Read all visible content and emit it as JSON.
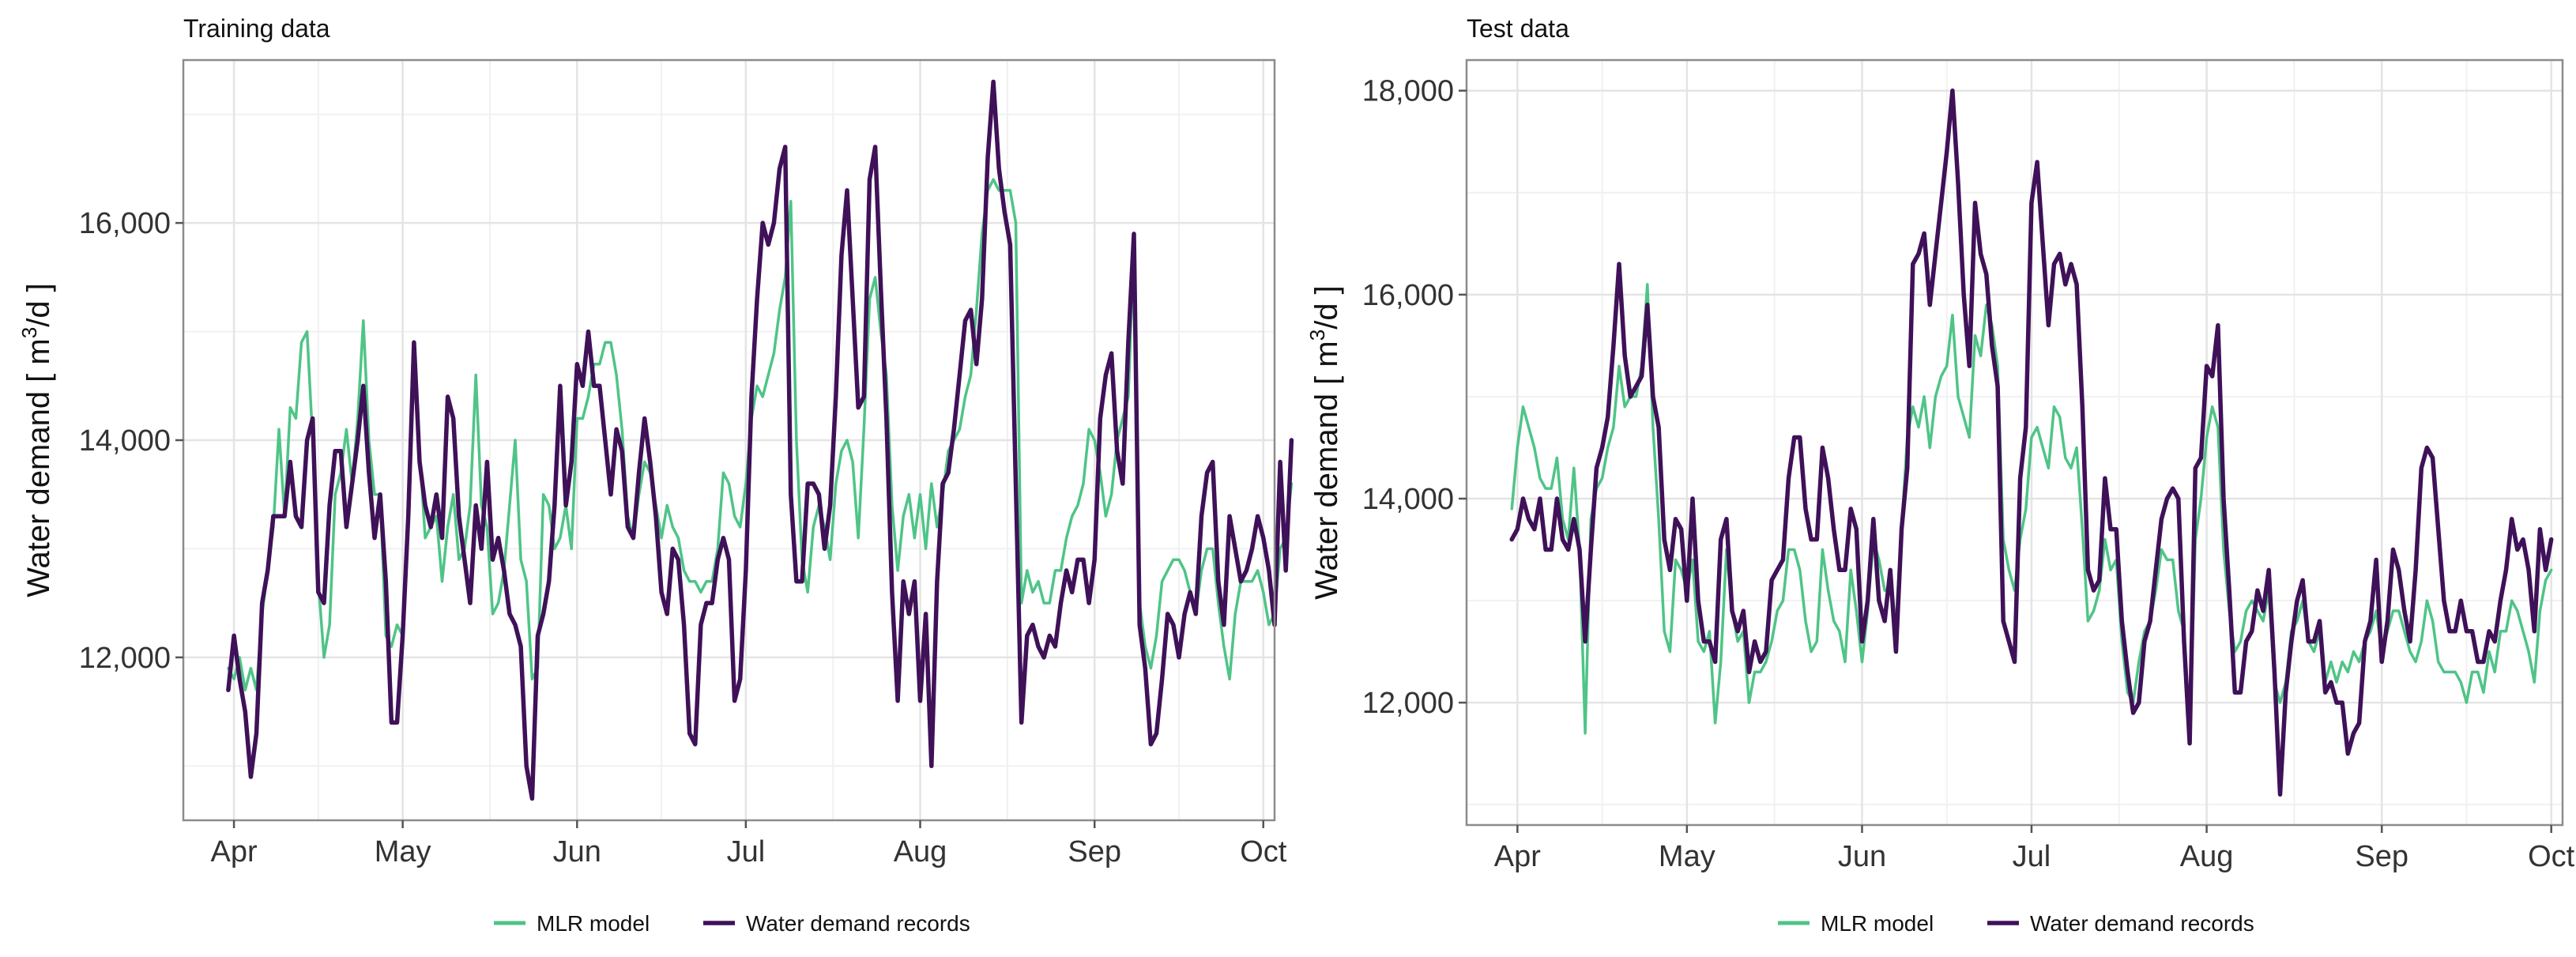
{
  "colors": {
    "mlr": "#4fc487",
    "records": "#3f1158",
    "grid_major": "#e4e4e4",
    "grid_minor": "#f1f1f1",
    "border": "#8c8c8c"
  },
  "chart_data": [
    {
      "type": "line",
      "title": "Training data",
      "xlabel": "",
      "ylabel": "Water demand [ m³/d ]",
      "ylabel_parts": {
        "prefix": "Water demand [ m",
        "sup": "3",
        "suffix": "/d ]"
      },
      "x_tick_labels": [
        "Apr",
        "May",
        "Jun",
        "Jul",
        "Aug",
        "Sep",
        "Oct"
      ],
      "x_tick_days": [
        1,
        31,
        62,
        92,
        123,
        154,
        184
      ],
      "xlim_days": [
        -8,
        186
      ],
      "ylim": [
        10500,
        17500
      ],
      "y_ticks": [
        12000,
        14000,
        16000
      ],
      "y_tick_labels": [
        "12,000",
        "14,000",
        "16,000"
      ],
      "y_minor": [
        11000,
        13000,
        15000,
        17000
      ],
      "legend": {
        "position": "bottom",
        "items": [
          "MLR model",
          "Water demand records"
        ]
      },
      "series": [
        {
          "name": "Water demand records",
          "x_start_day": 0,
          "values": [
            11700,
            12200,
            11800,
            11500,
            10900,
            11300,
            12500,
            12800,
            13300,
            13300,
            13300,
            13800,
            13300,
            13200,
            14000,
            14200,
            12600,
            12500,
            13400,
            13900,
            13900,
            13200,
            13600,
            14000,
            14500,
            13700,
            13100,
            13500,
            12700,
            11400,
            11400,
            12200,
            13300,
            14900,
            13800,
            13400,
            13200,
            13500,
            13100,
            14400,
            14200,
            13300,
            12900,
            12500,
            13400,
            13000,
            13800,
            12900,
            13100,
            12800,
            12400,
            12300,
            12100,
            11000,
            10700,
            12200,
            12400,
            12700,
            13400,
            14500,
            13400,
            13800,
            14700,
            14500,
            15000,
            14500,
            14500,
            14000,
            13500,
            14100,
            13900,
            13200,
            13100,
            13700,
            14200,
            13800,
            13300,
            12600,
            12400,
            13000,
            12900,
            12300,
            11300,
            11200,
            12300,
            12500,
            12500,
            12900,
            13100,
            12900,
            11600,
            11800,
            12800,
            14400,
            15300,
            16000,
            15800,
            16000,
            16500,
            16700,
            13500,
            12700,
            12700,
            13600,
            13600,
            13500,
            13000,
            13400,
            14400,
            15700,
            16300,
            15300,
            14300,
            14400,
            16400,
            16700,
            15400,
            14200,
            12600,
            11600,
            12700,
            12400,
            12700,
            11600,
            12400,
            11000,
            12700,
            13600,
            13700,
            14100,
            14600,
            15100,
            15200,
            14700,
            15300,
            16600,
            17300,
            16500,
            16100,
            15800,
            13600,
            11400,
            12200,
            12300,
            12100,
            12000,
            12200,
            12100,
            12500,
            12800,
            12600,
            12900,
            12900,
            12500,
            12900,
            14200,
            14600,
            14800,
            13900,
            13600,
            14900,
            15900,
            12300,
            11900,
            11200,
            11300,
            11800,
            12400,
            12300,
            12000,
            12400,
            12600,
            12400,
            13300,
            13700,
            13800,
            12700,
            12300,
            13300,
            13000,
            12700,
            12800,
            13000,
            13300,
            13100,
            12800,
            12300,
            13800,
            12800,
            14000
          ]
        },
        {
          "name": "MLR model",
          "x_start_day": 0,
          "values": [
            11900,
            11800,
            12000,
            11700,
            11900,
            11700,
            12400,
            12800,
            13200,
            14100,
            13300,
            14300,
            14200,
            14900,
            15000,
            14000,
            12700,
            12000,
            12300,
            13500,
            13700,
            14100,
            13600,
            14200,
            15100,
            14000,
            13500,
            13500,
            12200,
            12100,
            12300,
            12200,
            13400,
            14600,
            13900,
            13100,
            13200,
            13300,
            12700,
            13200,
            13500,
            12900,
            13000,
            13400,
            14600,
            13400,
            13200,
            12400,
            12500,
            12800,
            13400,
            14000,
            12900,
            12700,
            11800,
            11900,
            13500,
            13400,
            13000,
            13100,
            13400,
            13000,
            14200,
            14200,
            14400,
            14700,
            14700,
            14900,
            14900,
            14600,
            14100,
            13300,
            13100,
            13500,
            13800,
            13700,
            13400,
            13100,
            13400,
            13200,
            13100,
            12800,
            12700,
            12700,
            12600,
            12700,
            12700,
            13000,
            13700,
            13600,
            13300,
            13200,
            13600,
            14200,
            14500,
            14400,
            14600,
            14800,
            15200,
            15500,
            16200,
            14000,
            12900,
            12600,
            13200,
            13400,
            13200,
            12900,
            13600,
            13900,
            14000,
            13800,
            13100,
            14100,
            15300,
            15500,
            15000,
            14600,
            13400,
            12800,
            13300,
            13500,
            13100,
            13500,
            13000,
            13600,
            13200,
            13500,
            13900,
            14000,
            14100,
            14400,
            14600,
            15200,
            15900,
            16300,
            16400,
            16300,
            16300,
            16300,
            16000,
            12500,
            12800,
            12600,
            12700,
            12500,
            12500,
            12800,
            12800,
            13100,
            13300,
            13400,
            13600,
            14100,
            14000,
            13700,
            13300,
            13500,
            14000,
            14200,
            14400,
            15800,
            12500,
            12100,
            11900,
            12200,
            12700,
            12800,
            12900,
            12900,
            12800,
            12600,
            12400,
            12800,
            13000,
            13000,
            12500,
            12100,
            11800,
            12400,
            12700,
            12700,
            12700,
            12800,
            12600,
            12300,
            12400,
            13000,
            13100,
            13600
          ]
        }
      ]
    },
    {
      "type": "line",
      "title": "Test data",
      "xlabel": "",
      "ylabel": "Water demand [ m³/d ]",
      "ylabel_parts": {
        "prefix": "Water demand [ m",
        "sup": "3",
        "suffix": "/d ]"
      },
      "x_tick_labels": [
        "Apr",
        "May",
        "Jun",
        "Jul",
        "Aug",
        "Sep",
        "Oct"
      ],
      "x_tick_days": [
        1,
        31,
        62,
        92,
        123,
        154,
        184
      ],
      "xlim_days": [
        -8,
        186
      ],
      "ylim": [
        10800,
        18300
      ],
      "y_ticks": [
        12000,
        14000,
        16000,
        18000
      ],
      "y_tick_labels": [
        "12,000",
        "14,000",
        "16,000",
        "18,000"
      ],
      "y_minor": [
        11000,
        13000,
        15000,
        17000
      ],
      "legend": {
        "position": "bottom",
        "items": [
          "MLR model",
          "Water demand records"
        ]
      },
      "series": [
        {
          "name": "Water demand records",
          "x_start_day": 0,
          "values": [
            13600,
            13700,
            14000,
            13800,
            13700,
            14000,
            13500,
            13500,
            14000,
            13600,
            13500,
            13800,
            13500,
            12600,
            13500,
            14300,
            14500,
            14800,
            15500,
            16300,
            15400,
            15000,
            15100,
            15200,
            15900,
            15000,
            14700,
            13600,
            13300,
            13800,
            13700,
            13000,
            14000,
            13000,
            12600,
            12600,
            12400,
            13600,
            13800,
            12900,
            12700,
            12900,
            12300,
            12600,
            12400,
            12500,
            13200,
            13300,
            13400,
            14200,
            14600,
            14600,
            13900,
            13600,
            13600,
            14500,
            14200,
            13700,
            13300,
            13300,
            13900,
            13700,
            12600,
            13000,
            13800,
            13000,
            12800,
            13300,
            12500,
            13700,
            14300,
            16300,
            16400,
            16600,
            15900,
            16400,
            16900,
            17400,
            18000,
            17100,
            16000,
            15300,
            16900,
            16400,
            16200,
            15500,
            15100,
            12800,
            12600,
            12400,
            14200,
            14700,
            16900,
            17300,
            16500,
            15700,
            16300,
            16400,
            16100,
            16300,
            16100,
            14900,
            13300,
            13100,
            13200,
            14200,
            13700,
            13700,
            12800,
            12300,
            11900,
            12000,
            12600,
            12800,
            13300,
            13800,
            14000,
            14100,
            14000,
            12600,
            11600,
            14300,
            14400,
            15300,
            15200,
            15700,
            14000,
            13100,
            12100,
            12100,
            12600,
            12700,
            13100,
            12900,
            13300,
            12300,
            11100,
            12100,
            12600,
            13000,
            13200,
            12600,
            12600,
            12800,
            12100,
            12200,
            12000,
            12000,
            11500,
            11700,
            11800,
            12600,
            12800,
            13400,
            12400,
            12800,
            13500,
            13300,
            12900,
            12600,
            13300,
            14300,
            14500,
            14400,
            13700,
            13000,
            12700,
            12700,
            13000,
            12700,
            12700,
            12400,
            12400,
            12700,
            12600,
            13000,
            13300,
            13800,
            13500,
            13600,
            13300,
            12700,
            13700,
            13300,
            13600
          ]
        },
        {
          "name": "MLR model",
          "x_start_day": 0,
          "values": [
            13900,
            14500,
            14900,
            14700,
            14500,
            14200,
            14100,
            14100,
            14400,
            13800,
            13600,
            14300,
            13500,
            11700,
            13800,
            14100,
            14200,
            14500,
            14700,
            15300,
            14900,
            15000,
            15000,
            15300,
            16100,
            14700,
            13800,
            12700,
            12500,
            13400,
            13300,
            13100,
            13400,
            12600,
            12500,
            12700,
            11800,
            12400,
            13500,
            12900,
            12600,
            12700,
            12000,
            12300,
            12300,
            12400,
            12600,
            12900,
            13000,
            13500,
            13500,
            13300,
            12800,
            12500,
            12600,
            13500,
            13100,
            12800,
            12700,
            12400,
            13300,
            12900,
            12400,
            12900,
            13600,
            13400,
            13100,
            13100,
            12800,
            13700,
            14600,
            14900,
            14700,
            15000,
            14500,
            15000,
            15200,
            15300,
            15800,
            15000,
            14800,
            14600,
            15600,
            15400,
            15900,
            15700,
            15300,
            13600,
            13300,
            13100,
            13600,
            13900,
            14600,
            14700,
            14500,
            14300,
            14900,
            14800,
            14400,
            14300,
            14500,
            13700,
            12800,
            12900,
            13100,
            13600,
            13300,
            13400,
            12600,
            12100,
            12000,
            12400,
            12700,
            12800,
            13100,
            13500,
            13400,
            13400,
            12900,
            12700,
            11600,
            13600,
            14000,
            14600,
            14900,
            14700,
            13500,
            12900,
            12500,
            12600,
            12900,
            13000,
            12900,
            12800,
            13100,
            12200,
            12000,
            12200,
            12700,
            12800,
            13000,
            12600,
            12500,
            12700,
            12200,
            12400,
            12200,
            12400,
            12300,
            12500,
            12400,
            12600,
            12700,
            12900,
            12500,
            12700,
            12900,
            12900,
            12700,
            12500,
            12400,
            12600,
            13000,
            12800,
            12400,
            12300,
            12300,
            12300,
            12200,
            12000,
            12300,
            12300,
            12100,
            12500,
            12300,
            12700,
            12700,
            13000,
            12900,
            12700,
            12500,
            12200,
            12900,
            13200,
            13300
          ]
        }
      ]
    }
  ]
}
